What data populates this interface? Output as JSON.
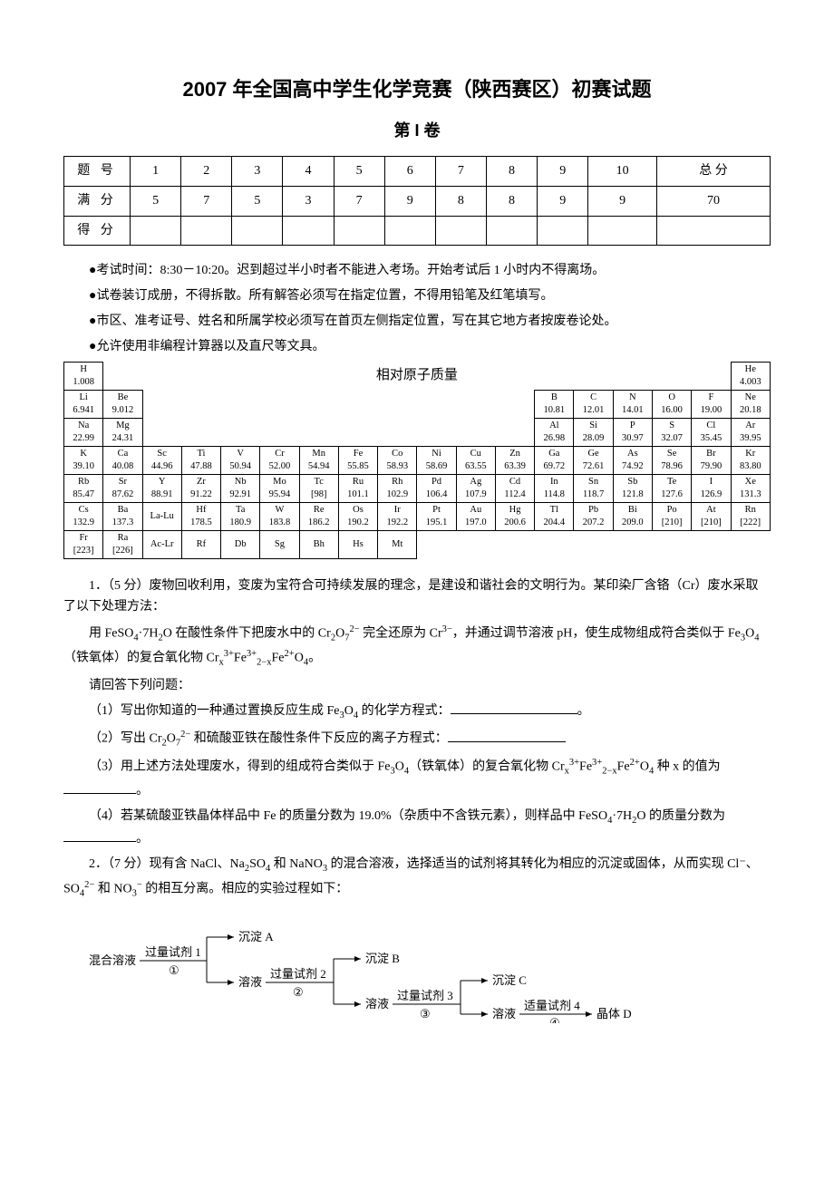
{
  "title": "2007 年全国高中学生化学竞赛（陕西赛区）初赛试题",
  "subtitle": "第 I 卷",
  "score_table": {
    "header_label": "题 号",
    "headers": [
      "1",
      "2",
      "3",
      "4",
      "5",
      "6",
      "7",
      "8",
      "9",
      "10",
      "总 分"
    ],
    "full_label": "满 分",
    "full": [
      "5",
      "7",
      "5",
      "3",
      "7",
      "9",
      "8",
      "8",
      "9",
      "9",
      "70"
    ],
    "got_label": "得 分",
    "got": [
      "",
      "",
      "",
      "",
      "",
      "",
      "",
      "",
      "",
      "",
      ""
    ]
  },
  "notes": [
    "●考试时间：8:30－10:20。迟到超过半小时者不能进入考场。开始考试后 1 小时内不得离场。",
    "●试卷装订成册，不得拆散。所有解答必须写在指定位置，不得用铅笔及红笔填写。",
    "●市区、准考证号、姓名和所属学校必须写在首页左侧指定位置，写在其它地方者按废卷论处。",
    "●允许使用非编程计算器以及直尺等文具。"
  ],
  "periodic_caption": "相对原子质量",
  "periodic_table": [
    [
      [
        "H",
        "1.008"
      ],
      null,
      null,
      null,
      null,
      null,
      null,
      null,
      null,
      null,
      null,
      null,
      null,
      null,
      null,
      null,
      null,
      [
        "He",
        "4.003"
      ]
    ],
    [
      [
        "Li",
        "6.941"
      ],
      [
        "Be",
        "9.012"
      ],
      null,
      null,
      null,
      null,
      null,
      null,
      null,
      null,
      null,
      null,
      [
        "B",
        "10.81"
      ],
      [
        "C",
        "12.01"
      ],
      [
        "N",
        "14.01"
      ],
      [
        "O",
        "16.00"
      ],
      [
        "F",
        "19.00"
      ],
      [
        "Ne",
        "20.18"
      ]
    ],
    [
      [
        "Na",
        "22.99"
      ],
      [
        "Mg",
        "24.31"
      ],
      null,
      null,
      null,
      null,
      null,
      null,
      null,
      null,
      null,
      null,
      [
        "Al",
        "26.98"
      ],
      [
        "Si",
        "28.09"
      ],
      [
        "P",
        "30.97"
      ],
      [
        "S",
        "32.07"
      ],
      [
        "Cl",
        "35.45"
      ],
      [
        "Ar",
        "39.95"
      ]
    ],
    [
      [
        "K",
        "39.10"
      ],
      [
        "Ca",
        "40.08"
      ],
      [
        "Sc",
        "44.96"
      ],
      [
        "Ti",
        "47.88"
      ],
      [
        "V",
        "50.94"
      ],
      [
        "Cr",
        "52.00"
      ],
      [
        "Mn",
        "54.94"
      ],
      [
        "Fe",
        "55.85"
      ],
      [
        "Co",
        "58.93"
      ],
      [
        "Ni",
        "58.69"
      ],
      [
        "Cu",
        "63.55"
      ],
      [
        "Zn",
        "63.39"
      ],
      [
        "Ga",
        "69.72"
      ],
      [
        "Ge",
        "72.61"
      ],
      [
        "As",
        "74.92"
      ],
      [
        "Se",
        "78.96"
      ],
      [
        "Br",
        "79.90"
      ],
      [
        "Kr",
        "83.80"
      ]
    ],
    [
      [
        "Rb",
        "85.47"
      ],
      [
        "Sr",
        "87.62"
      ],
      [
        "Y",
        "88.91"
      ],
      [
        "Zr",
        "91.22"
      ],
      [
        "Nb",
        "92.91"
      ],
      [
        "Mo",
        "95.94"
      ],
      [
        "Tc",
        "[98]"
      ],
      [
        "Ru",
        "101.1"
      ],
      [
        "Rh",
        "102.9"
      ],
      [
        "Pd",
        "106.4"
      ],
      [
        "Ag",
        "107.9"
      ],
      [
        "Cd",
        "112.4"
      ],
      [
        "In",
        "114.8"
      ],
      [
        "Sn",
        "118.7"
      ],
      [
        "Sb",
        "121.8"
      ],
      [
        "Te",
        "127.6"
      ],
      [
        "I",
        "126.9"
      ],
      [
        "Xe",
        "131.3"
      ]
    ],
    [
      [
        "Cs",
        "132.9"
      ],
      [
        "Ba",
        "137.3"
      ],
      [
        "La-Lu",
        ""
      ],
      [
        "Hf",
        "178.5"
      ],
      [
        "Ta",
        "180.9"
      ],
      [
        "W",
        "183.8"
      ],
      [
        "Re",
        "186.2"
      ],
      [
        "Os",
        "190.2"
      ],
      [
        "Ir",
        "192.2"
      ],
      [
        "Pt",
        "195.1"
      ],
      [
        "Au",
        "197.0"
      ],
      [
        "Hg",
        "200.6"
      ],
      [
        "Tl",
        "204.4"
      ],
      [
        "Pb",
        "207.2"
      ],
      [
        "Bi",
        "209.0"
      ],
      [
        "Po",
        "[210]"
      ],
      [
        "At",
        "[210]"
      ],
      [
        "Rn",
        "[222]"
      ]
    ],
    [
      [
        "Fr",
        "[223]"
      ],
      [
        "Ra",
        "[226]"
      ],
      [
        "Ac-Lr",
        ""
      ],
      [
        "Rf",
        ""
      ],
      [
        "Db",
        ""
      ],
      [
        "Sg",
        ""
      ],
      [
        "Bh",
        ""
      ],
      [
        "Hs",
        ""
      ],
      [
        "Mt",
        ""
      ],
      null,
      null,
      null,
      null,
      null,
      null,
      null,
      null,
      null
    ]
  ],
  "q1": {
    "lead1": "1．（5 分）废物回收利用，变废为宝符合可持续发展的理念，是建设和谐社会的文明行为。某印染厂含铬（Cr）废水采取了以下处理方法：",
    "lead2_a": "用 FeSO",
    "lead2_b": "·7H",
    "lead2_c": "O 在酸性条件下把废水中的 Cr",
    "lead2_d": "O",
    "lead2_e": " 完全还原为 Cr",
    "lead2_f": "，并通过调节溶液 pH，使生成物组成符合类似于 Fe",
    "lead2_g": "O",
    "lead2_h": "（铁氧体）的复合氧化物 Cr",
    "lead2_i": "Fe",
    "lead2_j": "Fe",
    "lead2_k": "O",
    "lead2_l": "。",
    "ask": "请回答下列问题：",
    "p1_a": "（1）写出你知道的一种通过置换反应生成 Fe",
    "p1_b": "O",
    "p1_c": " 的化学方程式：",
    "p1_end": "。",
    "p2_a": "（2）写出 Cr",
    "p2_b": "O",
    "p2_c": " 和硫酸亚铁在酸性条件下反应的离子方程式：",
    "p3_a": "（3）用上述方法处理废水，得到的组成符合类似于 Fe",
    "p3_b": "O",
    "p3_c": "（铁氧体）的复合氧化物 Cr",
    "p3_d": "Fe",
    "p3_e": "Fe",
    "p3_f": "O",
    "p3_g": " 种 x 的值为",
    "p3_end": "。",
    "p4_a": "（4）若某硫酸亚铁晶体样品中 Fe 的质量分数为 19.0%（杂质中不含铁元素），则样品中 FeSO",
    "p4_b": "·7H",
    "p4_c": "O 的质量分数为",
    "p4_end": "。"
  },
  "q2": {
    "lead_a": "2．（7 分）现有含 NaCl、Na",
    "lead_b": "SO",
    "lead_c": " 和 NaNO",
    "lead_d": " 的混合溶液，选择适当的试剂将其转化为相应的沉淀或固体，从而实现 Cl⁻、SO",
    "lead_e": " 和 NO",
    "lead_f": " 的相互分离。相应的实验过程如下："
  },
  "flow": {
    "mix": "混合溶液",
    "excess": "过量试剂",
    "proper": "适量试剂",
    "precip": "沉淀",
    "solution": "溶液",
    "solid": "晶体",
    "c1": "①",
    "c2": "②",
    "c3": "③",
    "c4": "④",
    "n1": "1",
    "n2": "2",
    "n3": "3",
    "n4": "4",
    "A": "A",
    "B": "B",
    "C": "C",
    "D": "D"
  }
}
